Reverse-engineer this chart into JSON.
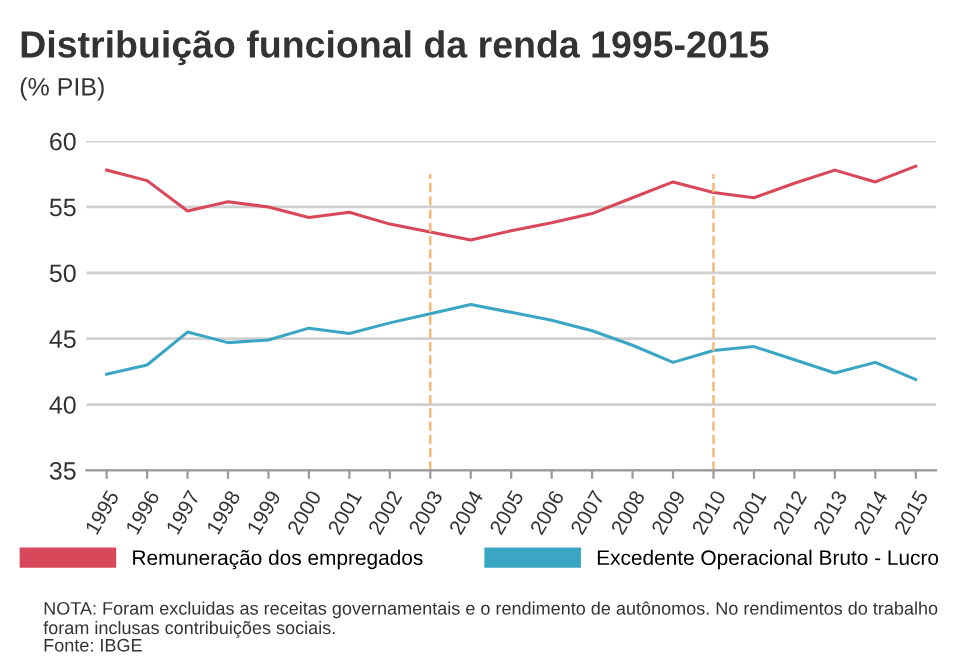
{
  "chart_data": {
    "type": "line",
    "title": "Distribuição funcional da renda 1995-2015",
    "subtitle": "(% PIB)",
    "categories": [
      "1995",
      "1996",
      "1997",
      "1998",
      "1999",
      "2000",
      "2001",
      "2002",
      "2003",
      "2004",
      "2005",
      "2006",
      "2007",
      "2008",
      "2009",
      "2010",
      "2001",
      "2012",
      "2013",
      "2014",
      "2015"
    ],
    "series": [
      {
        "name": "Remuneração dos empregados",
        "color": "#d9475a",
        "values": [
          57.8,
          57.0,
          54.7,
          55.4,
          55.0,
          54.2,
          54.6,
          53.7,
          53.1,
          52.5,
          53.2,
          53.8,
          54.5,
          55.7,
          56.9,
          56.1,
          55.7,
          56.8,
          57.8,
          56.9,
          58.1
        ]
      },
      {
        "name": "Excedente Operacional Bruto - Lucro",
        "color": "#3aa6c4",
        "values": [
          42.3,
          43.0,
          45.5,
          44.7,
          44.9,
          45.8,
          45.4,
          46.2,
          46.9,
          47.6,
          47.0,
          46.4,
          45.6,
          44.5,
          43.2,
          44.1,
          44.4,
          43.4,
          42.4,
          43.2,
          41.9
        ]
      }
    ],
    "ylim": [
      35,
      60
    ],
    "yticks": [
      35,
      40,
      45,
      50,
      55,
      60
    ],
    "grid": "y",
    "legend": "bottom",
    "marker": "none",
    "line_style": "solid",
    "ref_lines": [
      {
        "axis": "x",
        "value": "2003",
        "label": null,
        "color": "#f5b97a",
        "line_style": "dashed"
      },
      {
        "axis": "x",
        "value": "2010",
        "label": null,
        "color": "#f5b97a",
        "line_style": "dashed"
      }
    ],
    "annotations": [
      "NOTA: Foram excluidas as receitas governamentais e o rendimento de autônomos. No rendimentos do trabalho foram inclusas contribuições sociais.",
      "Fonte: IBGE"
    ]
  }
}
